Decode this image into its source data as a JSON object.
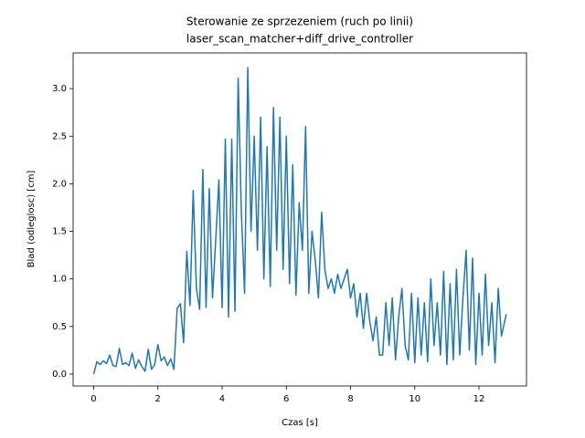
{
  "chart_data": {
    "type": "line",
    "title": [
      "Sterowanie ze sprzezeniem (ruch po linii)",
      "laser_scan_matcher+diff_drive_controller"
    ],
    "xlabel": "Czas [s]",
    "ylabel": "Blad (odleglosc) [cm]",
    "xlim": [
      -0.64,
      13.48
    ],
    "ylim": [
      -0.125,
      3.375
    ],
    "xticks": [
      0,
      2,
      4,
      6,
      8,
      10,
      12
    ],
    "yticks": [
      {
        "value": 0,
        "label": "0.0"
      },
      0.5,
      {
        "value": 1,
        "label": "1.0"
      },
      1.5,
      {
        "value": 2,
        "label": "2.0"
      },
      2.5,
      {
        "value": 3,
        "label": "3.0"
      }
    ],
    "series": [
      {
        "color": "#1f77b4",
        "x": [
          0,
          0.1,
          0.2,
          0.3,
          0.4,
          0.5,
          0.6,
          0.7,
          0.8,
          0.9,
          1,
          1.1,
          1.2,
          1.3,
          1.4,
          1.5,
          1.6,
          1.7,
          1.8,
          1.9,
          2,
          2.1,
          2.2,
          2.3,
          2.4,
          2.5,
          2.6,
          2.7,
          2.8,
          2.9,
          3,
          3.1,
          3.2,
          3.3,
          3.4,
          3.5,
          3.6,
          3.7,
          3.8,
          3.9,
          4,
          4.1,
          4.2,
          4.3,
          4.4,
          4.5,
          4.6,
          4.7,
          4.8,
          4.9,
          5,
          5.1,
          5.2,
          5.3,
          5.4,
          5.5,
          5.6,
          5.7,
          5.8,
          5.9,
          6,
          6.1,
          6.2,
          6.3,
          6.4,
          6.5,
          6.6,
          6.7,
          6.8,
          6.9,
          7,
          7.1,
          7.2,
          7.3,
          7.4,
          7.5,
          7.6,
          7.7,
          7.8,
          7.9,
          8,
          8.1,
          8.2,
          8.3,
          8.4,
          8.5,
          8.6,
          8.7,
          8.8,
          8.9,
          9,
          9.1,
          9.2,
          9.3,
          9.4,
          9.5,
          9.6,
          9.7,
          9.8,
          9.9,
          10,
          10.1,
          10.2,
          10.3,
          10.4,
          10.5,
          10.6,
          10.7,
          10.8,
          10.9,
          11,
          11.1,
          11.2,
          11.3,
          11.4,
          11.5,
          11.6,
          11.7,
          11.8,
          11.9,
          12,
          12.1,
          12.2,
          12.3,
          12.4,
          12.5,
          12.6,
          12.7,
          12.85
        ],
        "values": [
          0,
          0.13,
          0.1,
          0.14,
          0.11,
          0.2,
          0.09,
          0.08,
          0.27,
          0.1,
          0.12,
          0.09,
          0.22,
          0.06,
          0.15,
          0.08,
          0.03,
          0.26,
          0.05,
          0.1,
          0.31,
          0.14,
          0.18,
          0.09,
          0.16,
          0.05,
          0.69,
          0.74,
          0.33,
          1.29,
          0.72,
          1.93,
          0.9,
          0.68,
          2.15,
          0.7,
          1.95,
          0.8,
          1.4,
          2.04,
          0.7,
          2.47,
          0.6,
          2.47,
          0.66,
          3.11,
          1.7,
          0.85,
          3.22,
          1.5,
          2.5,
          1.3,
          2.7,
          1.0,
          2.39,
          0.92,
          2.8,
          1.3,
          2.7,
          1.1,
          2.5,
          0.95,
          2.2,
          0.83,
          1.8,
          1.3,
          2.6,
          0.85,
          1.5,
          1.2,
          0.8,
          1.7,
          1.1,
          0.9,
          1.0,
          0.85,
          1.05,
          0.9,
          1.0,
          1.1,
          0.8,
          0.95,
          0.6,
          0.85,
          0.48,
          0.85,
          0.55,
          0.35,
          0.6,
          0.2,
          0.2,
          0.75,
          0.3,
          0.8,
          0.15,
          0.6,
          0.9,
          0.3,
          0.15,
          0.85,
          0.12,
          0.8,
          0.2,
          0.75,
          0.13,
          1.0,
          0.3,
          0.75,
          0.2,
          1.08,
          0.1,
          0.95,
          0.15,
          1.1,
          0.2,
          0.8,
          1.3,
          0.25,
          1.22,
          0.1,
          0.85,
          0.2,
          1.05,
          0.3,
          0.75,
          0.12,
          0.9,
          0.4,
          0.63
        ]
      }
    ]
  }
}
